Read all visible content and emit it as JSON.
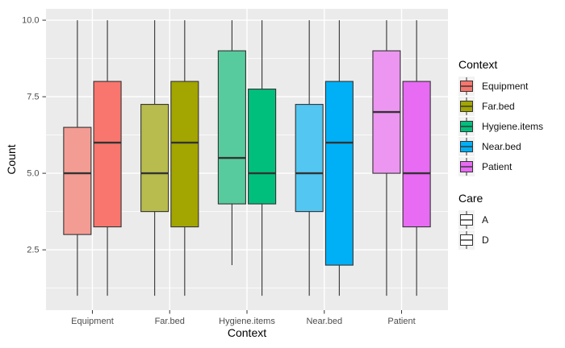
{
  "chart_data": {
    "type": "boxplot",
    "title": "",
    "xlabel": "Context",
    "ylabel": "Count",
    "categories": [
      "Equipment",
      "Far.bed",
      "Hygiene.items",
      "Near.bed",
      "Patient"
    ],
    "group_levels": [
      "A",
      "D"
    ],
    "y_ticks": [
      {
        "v": 2.5,
        "label": "2.5"
      },
      {
        "v": 5.0,
        "label": "5.0"
      },
      {
        "v": 7.5,
        "label": "7.5"
      },
      {
        "v": 10.0,
        "label": "10.0"
      }
    ],
    "y_minor": [
      1.25,
      3.75,
      6.25,
      8.75
    ],
    "ylim_view": [
      0.53,
      10.37
    ],
    "grid": true,
    "panel_bg": "#EBEBEB",
    "grid_color": "#FFFFFF",
    "box_stroke": "#333333",
    "tick_label_color": "#4D4D4D",
    "series": [
      {
        "context": "Equipment",
        "care": "A",
        "min": 1,
        "q1": 3,
        "median": 5,
        "q3": 6.5,
        "max": 10,
        "fill": "#F39C94"
      },
      {
        "context": "Equipment",
        "care": "D",
        "min": 1,
        "q1": 3.25,
        "median": 6,
        "q3": 8,
        "max": 10,
        "fill": "#F8766D"
      },
      {
        "context": "Far.bed",
        "care": "A",
        "min": 1,
        "q1": 3.75,
        "median": 5,
        "q3": 7.25,
        "max": 10,
        "fill": "#B8BB4E"
      },
      {
        "context": "Far.bed",
        "care": "D",
        "min": 1,
        "q1": 3.25,
        "median": 6,
        "q3": 8,
        "max": 10,
        "fill": "#A3A500"
      },
      {
        "context": "Hygiene.items",
        "care": "A",
        "min": 2,
        "q1": 4,
        "median": 5.5,
        "q3": 9,
        "max": 10,
        "fill": "#57CB9D"
      },
      {
        "context": "Hygiene.items",
        "care": "D",
        "min": 1,
        "q1": 4,
        "median": 5,
        "q3": 7.75,
        "max": 10,
        "fill": "#00BF7D"
      },
      {
        "context": "Near.bed",
        "care": "A",
        "min": 1,
        "q1": 3.75,
        "median": 5,
        "q3": 7.25,
        "max": 10,
        "fill": "#53C6F1"
      },
      {
        "context": "Near.bed",
        "care": "D",
        "min": 1,
        "q1": 2,
        "median": 6,
        "q3": 8,
        "max": 10,
        "fill": "#00B0F6"
      },
      {
        "context": "Patient",
        "care": "A",
        "min": 1,
        "q1": 5,
        "median": 7,
        "q3": 9,
        "max": 10,
        "fill": "#EC96F1"
      },
      {
        "context": "Patient",
        "care": "D",
        "min": 1,
        "q1": 3.25,
        "median": 5,
        "q3": 8,
        "max": 10,
        "fill": "#E76BF3"
      }
    ],
    "legend": {
      "context": {
        "title": "Context",
        "items": [
          {
            "label": "Equipment",
            "color": "#F8766D"
          },
          {
            "label": "Far.bed",
            "color": "#A3A500"
          },
          {
            "label": "Hygiene.items",
            "color": "#00BF7D"
          },
          {
            "label": "Near.bed",
            "color": "#00B0F6"
          },
          {
            "label": "Patient",
            "color": "#E76BF3"
          }
        ]
      },
      "care": {
        "title": "Care",
        "items": [
          {
            "label": "A",
            "color": "#FFFFFF"
          },
          {
            "label": "D",
            "color": "#FFFFFF"
          }
        ]
      }
    }
  }
}
